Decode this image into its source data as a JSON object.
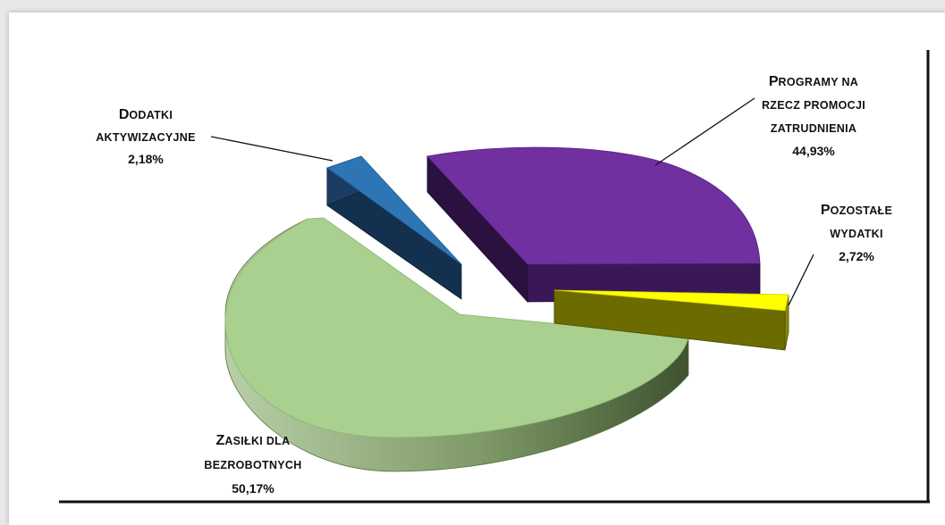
{
  "chart_data": {
    "type": "pie",
    "three_d": true,
    "slices": [
      {
        "key": "zasilki",
        "label_initial": "Z",
        "label_rest": "ASIŁKI DLA",
        "label_line2": "BEZROBOTNYCH",
        "label_line3": "",
        "percent_text": "50,17%",
        "value": 50.17,
        "color": "#a9d08e",
        "exploded": false
      },
      {
        "key": "dodatki",
        "label_initial": "D",
        "label_rest": "ODATKI",
        "label_line2": "AKTYWIZACYJNE",
        "label_line3": "",
        "percent_text": "2,18%",
        "value": 2.18,
        "color": "#2e75b6",
        "exploded": true
      },
      {
        "key": "programy",
        "label_initial": "P",
        "label_rest": "ROGRAMY NA",
        "label_line2": "RZECZ PROMOCJI",
        "label_line3": "ZATRUDNIENIA",
        "percent_text": "44,93%",
        "value": 44.93,
        "color": "#7030a0",
        "exploded": true
      },
      {
        "key": "pozostale",
        "label_initial": "P",
        "label_rest": "OZOSTAŁE",
        "label_line2": "WYDATKI",
        "label_line3": "",
        "percent_text": "2,72%",
        "value": 2.72,
        "color": "#ffff00",
        "exploded": true
      }
    ],
    "legend": "none",
    "title": ""
  }
}
